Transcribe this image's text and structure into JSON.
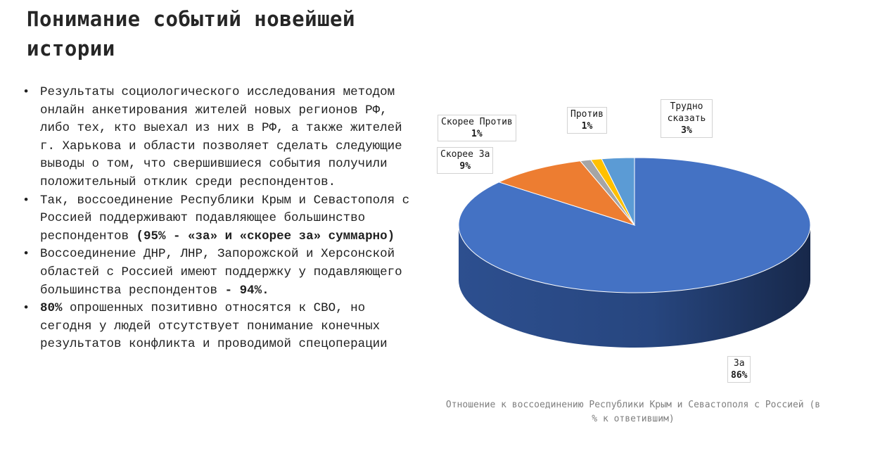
{
  "title": "Понимание событий новейшей истории",
  "bullets": [
    {
      "text": "Результаты социологического исследования методом онлайн анкетирования жителей новых регионов РФ, либо тех, кто выехал из них в РФ, а также жителей г. Харькова и области позволяет сделать следующие выводы о том, что свершившиеся события получили положительный отклик среди респондентов."
    },
    {
      "text": "Так, воссоединение Республики Крым и Севастополя с Россией поддерживают подавляющее большинство респондентов",
      "emph": "(95% - «за» и «скорее за» суммарно)"
    },
    {
      "text": "Воссоединение ДНР, ЛНР, Запорожской и Херсонской областей с Россией имеют поддержку у подавляющего большинства респондентов",
      "emph": "- 94%."
    },
    {
      "emph_lead": "80%",
      "text": "опрошенных позитивно относятся к СВО, но сегодня у людей отсутствует понимание конечных результатов конфликта и проводимой спецоперации"
    }
  ],
  "chart_data": {
    "type": "pie",
    "title": "Отношение к воссоединению Республики Крым и Севастополя с Россией (в % к ответившим)",
    "style": "3d",
    "slices": [
      {
        "label": "За",
        "value": 86,
        "display": "86%",
        "color": "#4472C4"
      },
      {
        "label": "Скорее За",
        "value": 9,
        "display": "9%",
        "color": "#ED7D31"
      },
      {
        "label": "Скорее Против",
        "value": 1,
        "display": "1%",
        "color": "#A5A5A5"
      },
      {
        "label": "Против",
        "value": 1,
        "display": "1%",
        "color": "#FFC000"
      },
      {
        "label": "Трудно сказать",
        "value": 3,
        "display": "3%",
        "color": "#5B9BD5"
      }
    ]
  }
}
